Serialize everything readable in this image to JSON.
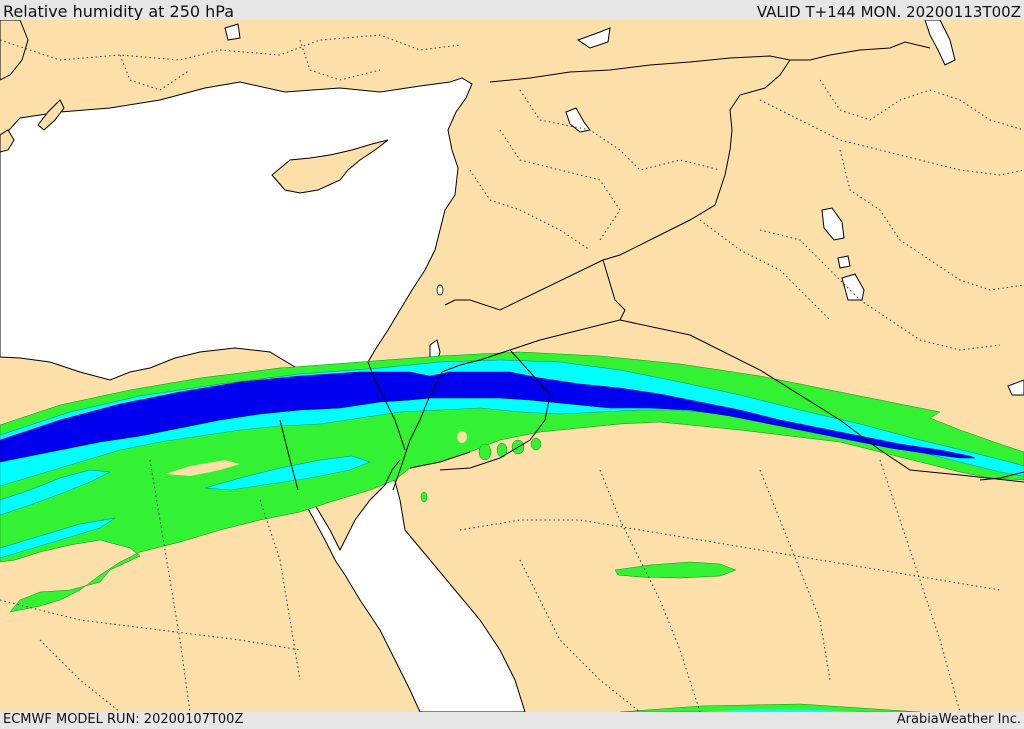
{
  "header": {
    "title": "Relative humidity at 250 hPa",
    "valid_time": "VALID T+144 MON. 20200113T00Z"
  },
  "footer": {
    "model_run": "ECMWF MODEL RUN: 20200107T00Z",
    "credit": "ArabiaWeather Inc."
  },
  "colors": {
    "land": "#fde0a9",
    "sea": "#ffffff",
    "humidity_band_1": "#33f233",
    "humidity_band_2": "#00ffff",
    "humidity_band_3": "#0000ee",
    "border": "#000000"
  }
}
